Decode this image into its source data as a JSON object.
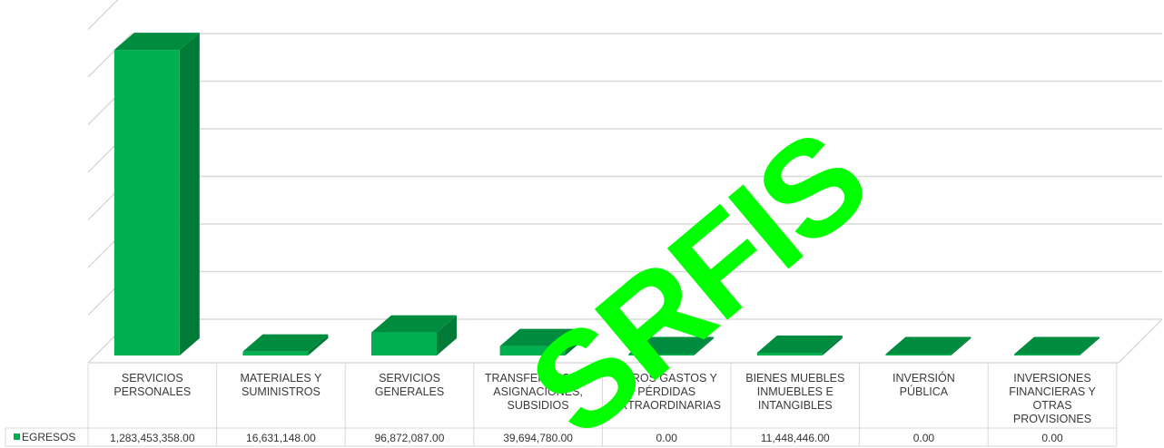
{
  "chart_data": {
    "type": "bar",
    "categories": [
      [
        "SERVICIOS",
        "PERSONALES"
      ],
      [
        "MATERIALES Y",
        "SUMINISTROS"
      ],
      [
        "SERVICIOS",
        "GENERALES"
      ],
      [
        "TRANSFERENCIAS,",
        "ASIGNACIONES,",
        "SUBSIDIOS"
      ],
      [
        "OTROS GASTOS Y",
        "PÉRDIDAS",
        "EXTRAORDINARIAS"
      ],
      [
        "BIENES MUEBLES",
        "INMUEBLES E",
        "INTANGIBLES"
      ],
      [
        "INVERSIÓN",
        "PÚBLICA"
      ],
      [
        "INVERSIONES",
        "FINANCIERAS Y",
        "OTRAS",
        "PROVISIONES"
      ]
    ],
    "series": [
      {
        "name": "EGRESOS",
        "values": [
          1283453358.0,
          16631148.0,
          96872087.0,
          39694780.0,
          0.0,
          11448446.0,
          0.0,
          0.0
        ],
        "value_labels": [
          "1,283,453,358.00",
          "16,631,148.00",
          "96,872,087.00",
          "39,694,780.00",
          "0.00",
          "11,448,446.00",
          "0.00",
          "0.00"
        ]
      }
    ],
    "ylim": [
      0,
      1400000000
    ],
    "y_tick_step": 200000000,
    "grid": true,
    "three_d": true,
    "data_table": true,
    "legend_position": "data-table-left",
    "colors": {
      "front": "#00b050",
      "side": "#007a37",
      "top": "#008c3e",
      "grid": "#d9d9d9",
      "legend_key": "#00b050"
    }
  },
  "watermark": {
    "text": "SRFIS",
    "color": "#00ff00"
  }
}
